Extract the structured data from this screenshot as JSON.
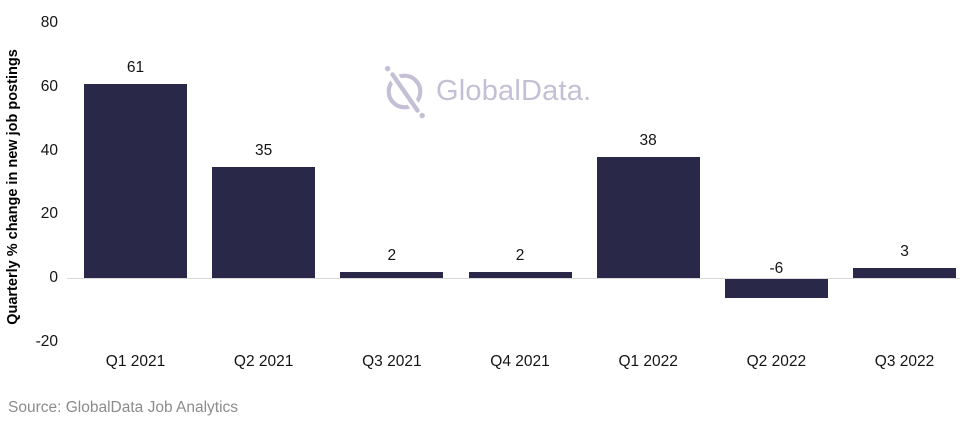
{
  "chart_data": {
    "type": "bar",
    "categories": [
      "Q1 2021",
      "Q2 2021",
      "Q3 2021",
      "Q4 2021",
      "Q1 2022",
      "Q2 2022",
      "Q3 2022"
    ],
    "values": [
      61,
      35,
      2,
      2,
      38,
      -6,
      3
    ],
    "title": "",
    "xlabel": "",
    "ylabel": "Quarterly % change in new job postings",
    "ylim": [
      -20,
      80
    ],
    "yticks": [
      80,
      60,
      40,
      20,
      0,
      -20
    ],
    "grid": false,
    "legend": "none",
    "data_labels_shown": true,
    "bar_color": "#292849",
    "zero_line_color": "#d9d9d9",
    "tick_label_color": "#141414"
  },
  "watermark": {
    "brand": "GlobalData.",
    "color": "#c5bfd5",
    "icon": "globaldata-circle-slash-icon"
  },
  "footer": {
    "source": "Source: GlobalData Job Analytics",
    "color": "#8c8c8c"
  }
}
